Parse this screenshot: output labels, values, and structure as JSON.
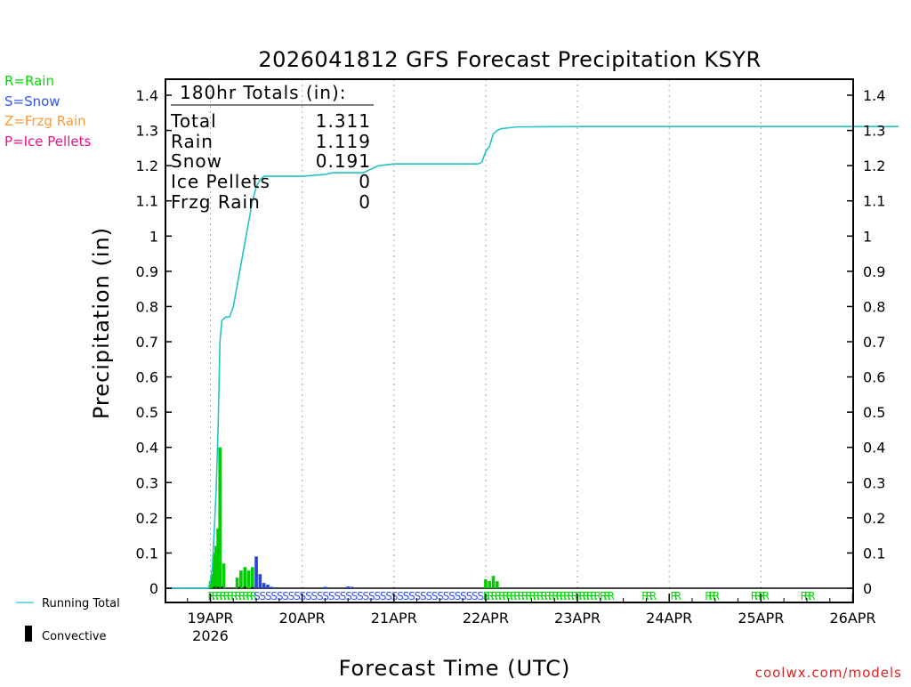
{
  "chart_data": {
    "type": "bar+line",
    "title": "2026041812 GFS Forecast Precipitation KSYR",
    "ylabel": "Precipitation (in)",
    "xlabel": "Forecast Time (UTC)",
    "ylim": [
      0,
      1.45
    ],
    "yticks": [
      {
        "value": 0,
        "label": "0"
      },
      {
        "value": 0.1,
        "label": "0.1"
      },
      {
        "value": 0.2,
        "label": "0.2"
      },
      {
        "value": 0.3,
        "label": "0.3"
      },
      {
        "value": 0.4,
        "label": "0.4"
      },
      {
        "value": 0.5,
        "label": "0.5"
      },
      {
        "value": 0.6,
        "label": "0.6"
      },
      {
        "value": 0.7,
        "label": "0.7"
      },
      {
        "value": 0.8,
        "label": "0.8"
      },
      {
        "value": 0.9,
        "label": "0.9"
      },
      {
        "value": 1.0,
        "label": "1"
      },
      {
        "value": 1.1,
        "label": "1.1"
      },
      {
        "value": 1.2,
        "label": "1.2"
      },
      {
        "value": 1.3,
        "label": "1.3"
      },
      {
        "value": 1.4,
        "label": "1.4"
      }
    ],
    "xlim_hours": [
      0,
      180
    ],
    "xticks": [
      {
        "hour": 0,
        "label": "19APR",
        "sublabel": "2026"
      },
      {
        "hour": 24,
        "label": "20APR"
      },
      {
        "hour": 48,
        "label": "21APR"
      },
      {
        "hour": 72,
        "label": "22APR"
      },
      {
        "hour": 96,
        "label": "23APR"
      },
      {
        "hour": 120,
        "label": "24APR"
      },
      {
        "hour": 144,
        "label": "25APR"
      },
      {
        "hour": 168,
        "label": "26APR"
      }
    ],
    "start_hour_offset": -12,
    "bars": [
      {
        "hour": 0.0,
        "value": 0.02,
        "type": "R"
      },
      {
        "hour": 0.5,
        "value": 0.04,
        "type": "R"
      },
      {
        "hour": 1.0,
        "value": 0.1,
        "type": "R"
      },
      {
        "hour": 1.5,
        "value": 0.12,
        "type": "R"
      },
      {
        "hour": 2.0,
        "value": 0.17,
        "type": "R"
      },
      {
        "hour": 2.5,
        "value": 0.4,
        "type": "R"
      },
      {
        "hour": 3.5,
        "value": 0.07,
        "type": "R"
      },
      {
        "hour": 7.0,
        "value": 0.03,
        "type": "R"
      },
      {
        "hour": 8.0,
        "value": 0.05,
        "type": "R"
      },
      {
        "hour": 9.0,
        "value": 0.06,
        "type": "R"
      },
      {
        "hour": 10.0,
        "value": 0.05,
        "type": "R"
      },
      {
        "hour": 11.0,
        "value": 0.06,
        "type": "R"
      },
      {
        "hour": 12.0,
        "value": 0.09,
        "type": "S"
      },
      {
        "hour": 13.0,
        "value": 0.04,
        "type": "S"
      },
      {
        "hour": 14.0,
        "value": 0.015,
        "type": "S"
      },
      {
        "hour": 15.0,
        "value": 0.01,
        "type": "S"
      },
      {
        "hour": 16.0,
        "value": 0.004,
        "type": "S"
      },
      {
        "hour": 30.0,
        "value": 0.004,
        "type": "S"
      },
      {
        "hour": 36.0,
        "value": 0.005,
        "type": "S"
      },
      {
        "hour": 37.0,
        "value": 0.004,
        "type": "S"
      },
      {
        "hour": 72.0,
        "value": 0.025,
        "type": "R"
      },
      {
        "hour": 73.0,
        "value": 0.02,
        "type": "R"
      },
      {
        "hour": 74.0,
        "value": 0.035,
        "type": "R"
      },
      {
        "hour": 75.0,
        "value": 0.02,
        "type": "R"
      }
    ],
    "convective": [
      {
        "hour": 1.0,
        "value": 0.004
      },
      {
        "hour": 2.0,
        "value": 0.003
      },
      {
        "hour": 3.0,
        "value": 0.004
      },
      {
        "hour": 7.5,
        "value": 0.003
      },
      {
        "hour": 9.0,
        "value": 0.004
      },
      {
        "hour": 11.0,
        "value": 0.003
      }
    ],
    "running_total": {
      "hours": [
        -12,
        -0.5,
        0,
        0.5,
        1,
        1.5,
        2,
        2.5,
        3,
        4,
        5,
        6,
        7,
        8,
        9,
        10,
        11,
        12,
        13,
        14,
        16,
        20,
        24,
        30,
        32,
        36,
        40,
        44,
        48,
        54,
        60,
        66,
        70,
        71,
        72,
        73,
        74,
        75,
        76,
        80,
        96,
        120,
        144,
        180
      ],
      "values": [
        0,
        0,
        0.02,
        0.06,
        0.16,
        0.28,
        0.45,
        0.7,
        0.76,
        0.77,
        0.77,
        0.8,
        0.86,
        0.92,
        0.98,
        1.04,
        1.1,
        1.14,
        1.16,
        1.17,
        1.17,
        1.17,
        1.17,
        1.175,
        1.18,
        1.18,
        1.18,
        1.2,
        1.205,
        1.205,
        1.205,
        1.205,
        1.205,
        1.21,
        1.24,
        1.255,
        1.29,
        1.3,
        1.305,
        1.31,
        1.311,
        1.311,
        1.311,
        1.311
      ]
    },
    "ptype_row": [
      {
        "start_hour": 0,
        "end_hour": 11.5,
        "type": "R"
      },
      {
        "start_hour": 12,
        "end_hour": 72,
        "type": "S"
      },
      {
        "start_hour": 72,
        "end_hour": 101,
        "type": "R"
      },
      {
        "start_hour": 102.5,
        "end_hour": 104.5,
        "type": "R"
      },
      {
        "start_hour": 113.5,
        "end_hour": 115.5,
        "type": "R"
      },
      {
        "start_hour": 121,
        "end_hour": 122,
        "type": "R"
      },
      {
        "start_hour": 130,
        "end_hour": 132,
        "type": "R"
      },
      {
        "start_hour": 142,
        "end_hour": 145,
        "type": "R"
      },
      {
        "start_hour": 155,
        "end_hour": 157,
        "type": "R"
      }
    ],
    "totals": {
      "header": "180hr Totals (in):",
      "rows": [
        {
          "label": "Total",
          "value": "1.311"
        },
        {
          "label": "Rain",
          "value": "1.119"
        },
        {
          "label": "Snow",
          "value": "0.191"
        },
        {
          "label": "Ice Pellets",
          "value": "0"
        },
        {
          "label": "Frzg Rain",
          "value": "0"
        }
      ]
    },
    "legend": {
      "ptypes": [
        {
          "text": "R=Rain",
          "color": "#00dd00"
        },
        {
          "text": "S=Snow",
          "color": "#3355ee"
        },
        {
          "text": "Z=Frzg Rain",
          "color": "#ff9a33"
        },
        {
          "text": "P=Ice Pellets",
          "color": "#ee1188"
        }
      ],
      "running_total_label": "Running Total",
      "convective_label": "Convective"
    },
    "colors": {
      "rain": "#00cc00",
      "snow": "#2244dd",
      "running_total": "#22c4c8",
      "convective": "#000000",
      "grid": "#aaaaaa",
      "ptype_rain_text": "#00dd00",
      "ptype_snow_text": "#3355ee"
    }
  },
  "credit": "coolwx.com/models"
}
